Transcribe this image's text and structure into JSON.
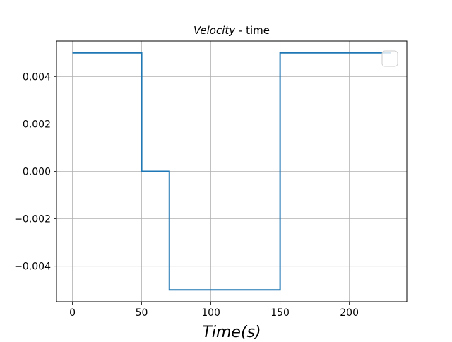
{
  "chart_data": {
    "type": "line",
    "title": {
      "italic_part": "Velocity",
      "plain_part": " - time"
    },
    "xlabel": {
      "italic_part": "Time",
      "plain_part": "(s)"
    },
    "ylabel": "",
    "xlim": [
      -11.5,
      241.5
    ],
    "ylim": [
      -0.0055,
      0.0055
    ],
    "x_ticks": [
      0,
      50,
      100,
      150,
      200
    ],
    "x_tick_labels": [
      "0",
      "50",
      "100",
      "150",
      "200"
    ],
    "y_ticks": [
      -0.004,
      -0.002,
      0.0,
      0.002,
      0.004
    ],
    "y_tick_labels": [
      "−0.004",
      "−0.002",
      "0.000",
      "0.002",
      "0.004"
    ],
    "grid": true,
    "legend": {
      "placement": "upper right",
      "entries": []
    },
    "series": [
      {
        "color": "#1f77b4",
        "step": true,
        "x": [
          0,
          50,
          50,
          70,
          70,
          150,
          150,
          230
        ],
        "y": [
          0.005,
          0.005,
          0.0,
          0.0,
          -0.005,
          -0.005,
          0.005,
          0.005
        ]
      }
    ]
  }
}
